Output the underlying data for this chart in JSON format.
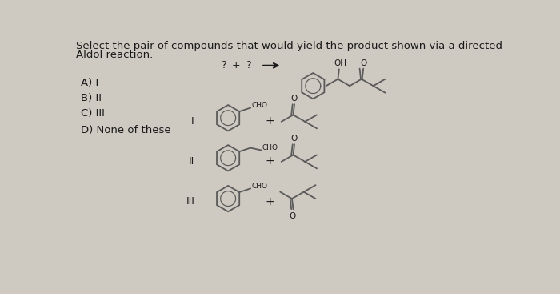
{
  "title_line1": "Select the pair of compounds that would yield the product shown via a directed",
  "title_line2": "Aldol reaction.",
  "options": [
    "A) I",
    "B) II",
    "C) III",
    "D) None of these"
  ],
  "bg_color": "#cec9c1",
  "line_color": "#5a5a5a",
  "text_color": "#1a1a1a",
  "font_size_title": 9.5,
  "font_size_options": 9.5,
  "font_size_labels": 7.5,
  "font_size_small": 6.5
}
